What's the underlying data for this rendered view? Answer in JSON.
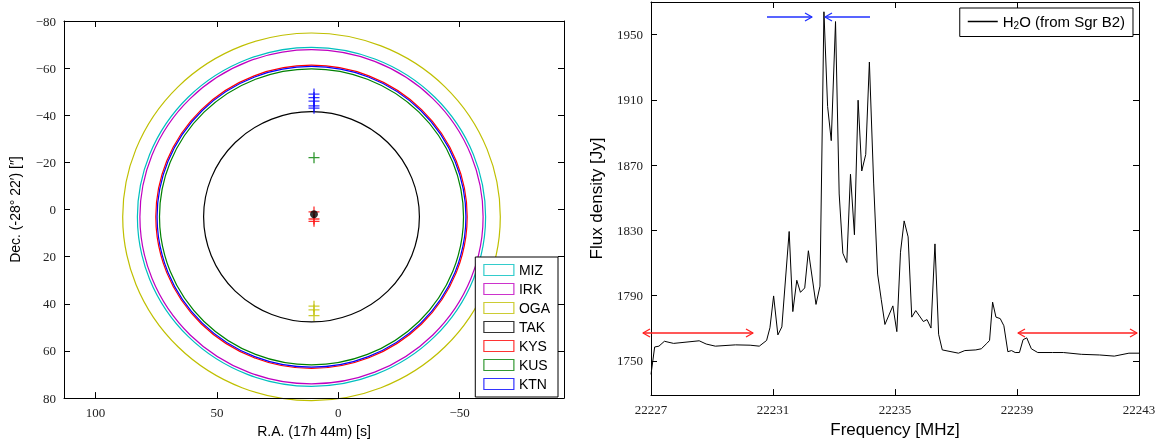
{
  "chart_data": [
    {
      "type": "scatter",
      "xlabel": "R.A. (17h 44m) [s]",
      "ylabel": "Dec. (-28° 22′) [″]",
      "xlim": [
        113,
        -93
      ],
      "ylim": [
        80,
        -80
      ],
      "xticks": [
        100,
        50,
        0,
        -50
      ],
      "yticks": [
        -80,
        -60,
        -40,
        -20,
        0,
        20,
        40,
        60,
        80
      ],
      "grid": false,
      "legend": "bottom right",
      "marker": "cross",
      "series": [
        {
          "name": "MIZ",
          "color": "#00bfbf"
        },
        {
          "name": "IRK",
          "color": "#bf00bf"
        },
        {
          "name": "OGA",
          "color": "#bfbf00",
          "x": [
            10,
            10,
            10
          ],
          "values": [
            41,
            42.6,
            45
          ]
        },
        {
          "name": "TAK",
          "color": "#000000",
          "marker": "circle",
          "x": [
            10
          ],
          "values": [
            2
          ]
        },
        {
          "name": "KYS",
          "color": "#ff0000",
          "x": [
            10,
            10,
            10
          ],
          "values": [
            1,
            4,
            5
          ]
        },
        {
          "name": "KUS",
          "color": "#008000",
          "x": [
            10
          ],
          "values": [
            -22
          ]
        },
        {
          "name": "KTN",
          "color": "#0000ff",
          "x": [
            10,
            10,
            10,
            10,
            10
          ],
          "values": [
            -49,
            -47.5,
            -46,
            -44,
            -43
          ]
        }
      ]
    },
    {
      "type": "line",
      "xlabel": "Frequency [MHz]",
      "ylabel": "Flux density [Jy]",
      "xlim": [
        22227,
        22243
      ],
      "ylim": [
        1729,
        1970
      ],
      "xticks": [
        22227,
        22231,
        22235,
        22239,
        22243
      ],
      "yticks": [
        1750,
        1790,
        1830,
        1870,
        1910,
        1950
      ],
      "grid": false,
      "legend": "top right",
      "marker": "none",
      "series": [
        {
          "name": "H$_{2}$O (from Sgr B2)",
          "color": "#000000",
          "x": [
            22227,
            22227.12,
            22227.26,
            22227.44,
            22227.74,
            22228.58,
            22228.81,
            22229.11,
            22229.77,
            22230.25,
            22230.55,
            22230.79,
            22230.9,
            22231.02,
            22231.16,
            22231.29,
            22231.53,
            22231.65,
            22231.78,
            22231.9,
            22232.04,
            22232.16,
            22232.41,
            22232.54,
            22232.67,
            22232.79,
            22232.91,
            22233.05,
            22233.17,
            22233.29,
            22233.42,
            22233.54,
            22233.67,
            22233.79,
            22233.91,
            22234.04,
            22234.16,
            22234.3,
            22234.43,
            22234.55,
            22234.67,
            22234.93,
            22235.06,
            22235.18,
            22235.3,
            22235.43,
            22235.55,
            22235.68,
            22235.93,
            22236.05,
            22236.18,
            22236.31,
            22236.43,
            22236.55,
            22237.08,
            22237.29,
            22237.65,
            22237.83,
            22238.01,
            22238.1,
            22238.2,
            22238.31,
            22238.45,
            22238.57,
            22238.7,
            22238.82,
            22238.94,
            22239.08,
            22239.2,
            22239.32,
            22239.47,
            22239.68,
            22240.16,
            22240.52,
            22241.11,
            22241.71,
            22242.19,
            22242.67,
            22243
          ],
          "values": [
            1741.7,
            1758.5,
            1759,
            1762,
            1760.7,
            1762.3,
            1760.3,
            1759,
            1759.8,
            1759.6,
            1759,
            1762.5,
            1770.3,
            1789.8,
            1765.9,
            1770.8,
            1829.3,
            1780.2,
            1799.4,
            1792,
            1794.7,
            1817.5,
            1784.6,
            1795.8,
            1964,
            1906,
            1885,
            1958,
            1852.3,
            1816,
            1810.3,
            1864.4,
            1827.3,
            1909.8,
            1866.4,
            1876.5,
            1933.2,
            1859,
            1803.2,
            1787.5,
            1772.3,
            1783.7,
            1767.9,
            1816.6,
            1835.8,
            1826,
            1776.8,
            1780.8,
            1774.1,
            1775.3,
            1770.1,
            1821.7,
            1766.3,
            1756.7,
            1754.7,
            1756.3,
            1756.7,
            1757.4,
            1760.7,
            1762.5,
            1786,
            1776.8,
            1775.9,
            1771.5,
            1755.6,
            1756.3,
            1755.1,
            1755.1,
            1763,
            1764.1,
            1757.4,
            1755.1,
            1755.1,
            1755.1,
            1754,
            1753.6,
            1752.9,
            1754.7,
            1754.7
          ]
        }
      ]
    }
  ]
}
